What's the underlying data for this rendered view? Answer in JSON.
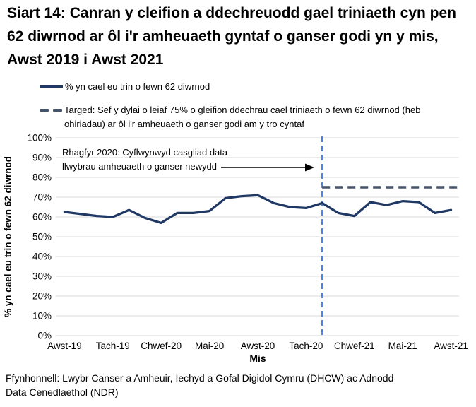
{
  "title": "Siart 14: Canran y cleifion a ddechreuodd gael triniaeth cyn pen 62 diwrnod ar ôl i'r amheuaeth gyntaf o ganser godi yn y mis, Awst 2019 i Awst 2021",
  "legend": {
    "series_label": "% yn cael eu trin o fewn 62 diwrnod",
    "target_label": "Targed: Sef y dylai o leiaf 75% o gleifion ddechrau cael triniaeth o fewn 62 diwrnod (heb ohiriadau) ar ôl i'r amheuaeth o ganser godi am y tro cyntaf"
  },
  "annotation": {
    "line1": "Rhagfyr 2020: Cyflwynwyd casgliad data",
    "line2": "llwybrau amheuaeth o ganser newydd"
  },
  "footer": "Ffynhonnell: Lwybr Canser a Amheuir, Iechyd a Gofal Digidol Cymru (DHCW) ac Adnodd Data Cenedlaethol (NDR)",
  "colors": {
    "series_line": "#1F3864",
    "target_line": "#44546A",
    "event_line": "#4A86E8",
    "gridline": "#D9D9D9",
    "arrow": "#000000",
    "text": "#000000"
  },
  "chart_data": {
    "type": "line",
    "xlabel": "Mis",
    "ylabel": "% yn cael eu trin o fewn 62 diwrnod",
    "ylim": [
      0,
      100
    ],
    "ytick_labels": [
      "0%",
      "10%",
      "20%",
      "30%",
      "40%",
      "50%",
      "60%",
      "70%",
      "80%",
      "90%",
      "100%"
    ],
    "x_tick_labels": [
      "Awst-19",
      "Tach-19",
      "Chwef-20",
      "Mai-20",
      "Awst-20",
      "Tach-20",
      "Chwef-21",
      "Mai-21",
      "Awst-21"
    ],
    "x_tick_indices": [
      0,
      3,
      6,
      9,
      12,
      15,
      18,
      21,
      24
    ],
    "grid": true,
    "legend_position": "top-left",
    "series": [
      {
        "name": "% yn cael eu trin o fewn 62 diwrnod",
        "values": [
          62.5,
          61.5,
          60.5,
          60,
          63.5,
          59.5,
          57,
          62,
          62,
          63,
          69.5,
          70.5,
          71,
          67,
          65,
          64.5,
          67,
          62,
          60.5,
          67.5,
          66,
          68,
          67.5,
          62,
          63.5
        ]
      }
    ],
    "target": {
      "value": 75,
      "start_index": 16
    },
    "event_line_index": 16
  }
}
